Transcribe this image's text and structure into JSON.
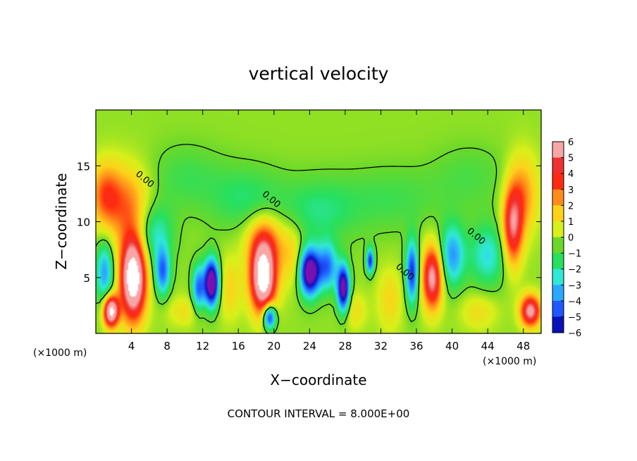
{
  "chart_data": {
    "type": "heatmap",
    "title": "vertical velocity",
    "xlabel": "X−coordinate",
    "ylabel": "Z−coordinate",
    "x_unit_left": "(×1000 m)",
    "x_unit_right": "(×1000 m)",
    "footer": "CONTOUR INTERVAL = 8.000E+00",
    "xlim": [
      0,
      50
    ],
    "ylim": [
      0,
      20
    ],
    "x_ticks": [
      4,
      8,
      12,
      16,
      20,
      24,
      28,
      32,
      36,
      40,
      44,
      48
    ],
    "x_tick_labels": [
      "4",
      "8",
      "12",
      "16",
      "20",
      "24",
      "28",
      "32",
      "36",
      "40",
      "44",
      "48"
    ],
    "y_ticks": [
      5,
      10,
      15
    ],
    "y_tick_labels": [
      "5",
      "10",
      "15"
    ],
    "contour_labels": [
      {
        "text": "0.00",
        "x": 5.3,
        "y": 13.6
      },
      {
        "text": "0.00",
        "x": 19.5,
        "y": 11.8
      },
      {
        "text": "0.00",
        "x": 34.5,
        "y": 5.3
      },
      {
        "text": "0.00",
        "x": 42.5,
        "y": 8.5
      }
    ],
    "colorbar": {
      "labels": [
        "6",
        "5",
        "4",
        "3",
        "2",
        "1",
        "0",
        "−1",
        "−2",
        "−3",
        "−4",
        "−5",
        "−6"
      ],
      "colors": [
        "#f7a6a6",
        "#f03030",
        "#ff2a10",
        "#ff8c1a",
        "#ffd21a",
        "#d8f01a",
        "#6ad82a",
        "#26e060",
        "#30e8d8",
        "#2aa8ff",
        "#1f58ff",
        "#0a10b8",
        "#7a10b0"
      ],
      "range": [
        -6,
        6
      ]
    },
    "features": [
      {
        "x": 4.2,
        "z": 5.0,
        "v": 9.0,
        "sx": 1.0,
        "sz": 2.6
      },
      {
        "x": 1.7,
        "z": 2.0,
        "v": 8.0,
        "sx": 0.6,
        "sz": 1.0
      },
      {
        "x": 3.5,
        "z": 11.5,
        "v": 2.8,
        "sx": 2.0,
        "sz": 2.5
      },
      {
        "x": 1.0,
        "z": 12.5,
        "v": 2.5,
        "sx": 1.2,
        "sz": 2.0
      },
      {
        "x": 18.8,
        "z": 5.0,
        "v": 8.5,
        "sx": 1.0,
        "sz": 2.2
      },
      {
        "x": 19.0,
        "z": 8.5,
        "v": 2.5,
        "sx": 1.6,
        "sz": 1.8
      },
      {
        "x": 37.8,
        "z": 5.0,
        "v": 6.0,
        "sx": 0.8,
        "sz": 2.0
      },
      {
        "x": 46.8,
        "z": 9.5,
        "v": 5.0,
        "sx": 0.8,
        "sz": 2.5
      },
      {
        "x": 48.0,
        "z": 12.5,
        "v": 2.5,
        "sx": 1.2,
        "sz": 2.5
      },
      {
        "x": 48.8,
        "z": 2.0,
        "v": 6.0,
        "sx": 0.8,
        "sz": 1.0
      },
      {
        "x": 1.0,
        "z": 5.5,
        "v": -3.5,
        "sx": 0.7,
        "sz": 2.0
      },
      {
        "x": 6.5,
        "z": 9.0,
        "v": -2.5,
        "sx": 1.5,
        "sz": 2.0
      },
      {
        "x": 7.5,
        "z": 5.5,
        "v": -4.0,
        "sx": 0.6,
        "sz": 1.5
      },
      {
        "x": 13.0,
        "z": 4.5,
        "v": -8.0,
        "sx": 0.6,
        "sz": 1.5
      },
      {
        "x": 11.5,
        "z": 4.0,
        "v": -4.0,
        "sx": 0.5,
        "sz": 1.5
      },
      {
        "x": 19.5,
        "z": 1.5,
        "v": -6.0,
        "sx": 0.5,
        "sz": 0.8
      },
      {
        "x": 24.0,
        "z": 5.5,
        "v": -7.5,
        "sx": 0.8,
        "sz": 1.5
      },
      {
        "x": 27.8,
        "z": 4.0,
        "v": -7.0,
        "sx": 0.5,
        "sz": 1.5
      },
      {
        "x": 26.0,
        "z": 6.0,
        "v": -4.0,
        "sx": 0.8,
        "sz": 1.5
      },
      {
        "x": 30.8,
        "z": 6.5,
        "v": -5.0,
        "sx": 0.3,
        "sz": 0.8
      },
      {
        "x": 35.5,
        "z": 5.5,
        "v": -5.0,
        "sx": 0.5,
        "sz": 2.0
      },
      {
        "x": 40.0,
        "z": 7.0,
        "v": -3.5,
        "sx": 1.0,
        "sz": 2.0
      },
      {
        "x": 44.0,
        "z": 7.0,
        "v": -2.5,
        "sx": 1.5,
        "sz": 2.0
      },
      {
        "x": 17.0,
        "z": 12.0,
        "v": -1.5,
        "sx": 3.0,
        "sz": 2.0
      },
      {
        "x": 25.0,
        "z": 11.0,
        "v": -1.5,
        "sx": 3.0,
        "sz": 2.0
      },
      {
        "x": 10.0,
        "z": 14.0,
        "v": -1.0,
        "sx": 3.0,
        "sz": 2.0
      },
      {
        "x": 33.0,
        "z": 12.0,
        "v": -1.0,
        "sx": 4.0,
        "sz": 2.0
      },
      {
        "x": 42.0,
        "z": 14.0,
        "v": -0.8,
        "sx": 3.0,
        "sz": 2.0
      },
      {
        "x": 15.0,
        "z": 4.0,
        "v": 1.5,
        "sx": 1.0,
        "sz": 2.0
      },
      {
        "x": 22.0,
        "z": 7.0,
        "v": 1.5,
        "sx": 1.0,
        "sz": 2.0
      },
      {
        "x": 33.0,
        "z": 3.0,
        "v": 1.5,
        "sx": 1.0,
        "sz": 2.0
      },
      {
        "x": 10.0,
        "z": 2.0,
        "v": 1.2,
        "sx": 1.5,
        "sz": 1.0
      },
      {
        "x": 29.0,
        "z": 2.0,
        "v": 1.3,
        "sx": 1.0,
        "sz": 1.2
      },
      {
        "x": 43.0,
        "z": 2.0,
        "v": 1.3,
        "sx": 1.5,
        "sz": 1.2
      }
    ],
    "grid": false
  }
}
